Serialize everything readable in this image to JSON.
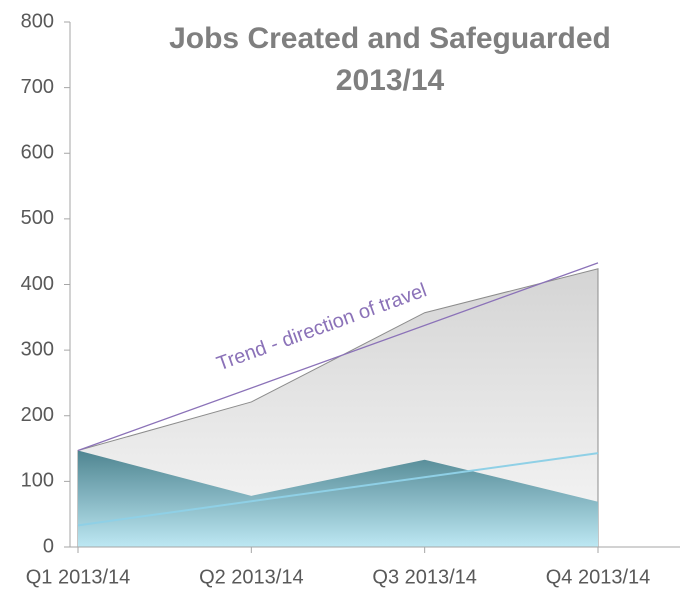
{
  "chart_data": {
    "type": "area",
    "title": [
      "Jobs Created and Safeguarded",
      "2013/14"
    ],
    "categories": [
      "Q1 2013/14",
      "Q2 2013/14",
      "Q3 2013/14",
      "Q4 2013/14"
    ],
    "series": [
      {
        "color": "#d4d4d4",
        "values": [
          147,
          221,
          357,
          424
        ]
      },
      {
        "color": "#4f8591",
        "values": [
          147,
          78,
          133,
          69
        ]
      }
    ],
    "trend_lines": [
      {
        "color": "#8b72b8",
        "values": [
          147,
          433
        ]
      },
      {
        "color": "#8fd0e6",
        "values": [
          33,
          143
        ]
      }
    ],
    "annotation": "Trend - direction of travel",
    "ylim": [
      0,
      800
    ],
    "yticks": [
      0,
      100,
      200,
      300,
      400,
      500,
      600,
      700,
      800
    ]
  }
}
